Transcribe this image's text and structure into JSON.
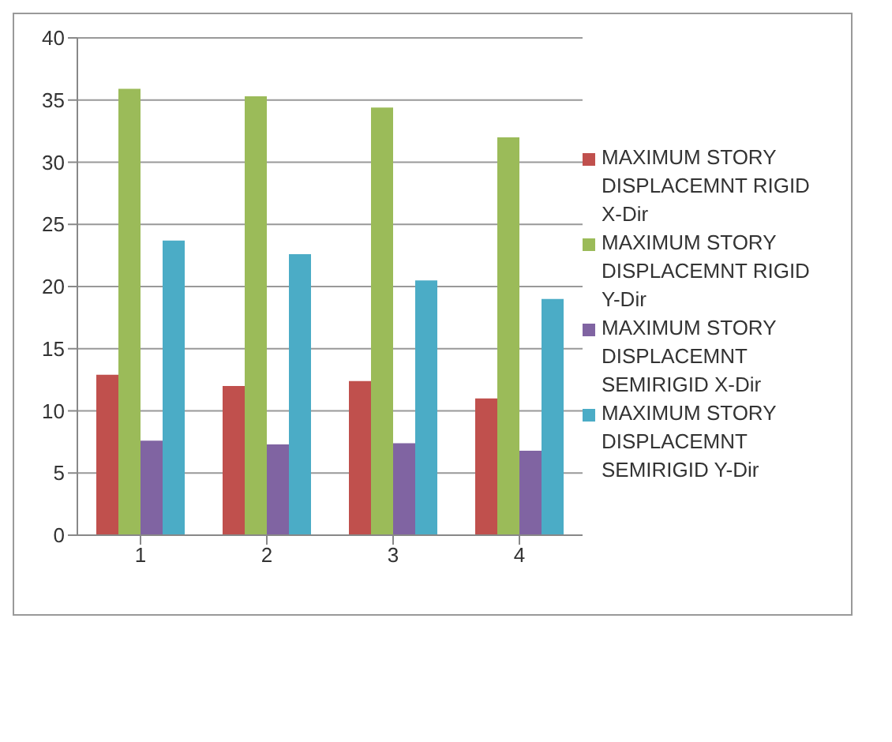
{
  "chart_data": {
    "type": "bar",
    "categories": [
      "1",
      "2",
      "3",
      "4"
    ],
    "series": [
      {
        "name": "MAXIMUM STORY DISPLACEMNT RIGID X-Dir",
        "color": "#c0504d",
        "values": [
          12.9,
          12,
          12.4,
          11
        ]
      },
      {
        "name": "MAXIMUM STORY DISPLACEMNT RIGID Y-Dir",
        "color": "#9bbb59",
        "values": [
          35.9,
          35.3,
          34.4,
          32
        ]
      },
      {
        "name": "MAXIMUM STORY DISPLACEMNT SEMIRIGID X-Dir",
        "color": "#8064a2",
        "values": [
          7.6,
          7.3,
          7.4,
          6.8
        ]
      },
      {
        "name": "MAXIMUM STORY DISPLACEMNT SEMIRIGID Y-Dir",
        "color": "#4bacc6",
        "values": [
          23.7,
          22.6,
          20.5,
          19
        ]
      }
    ],
    "ylim": [
      0,
      40
    ],
    "yticks": [
      0,
      5,
      10,
      15,
      20,
      25,
      30,
      35,
      40
    ],
    "grid": "y",
    "legend": "right"
  }
}
